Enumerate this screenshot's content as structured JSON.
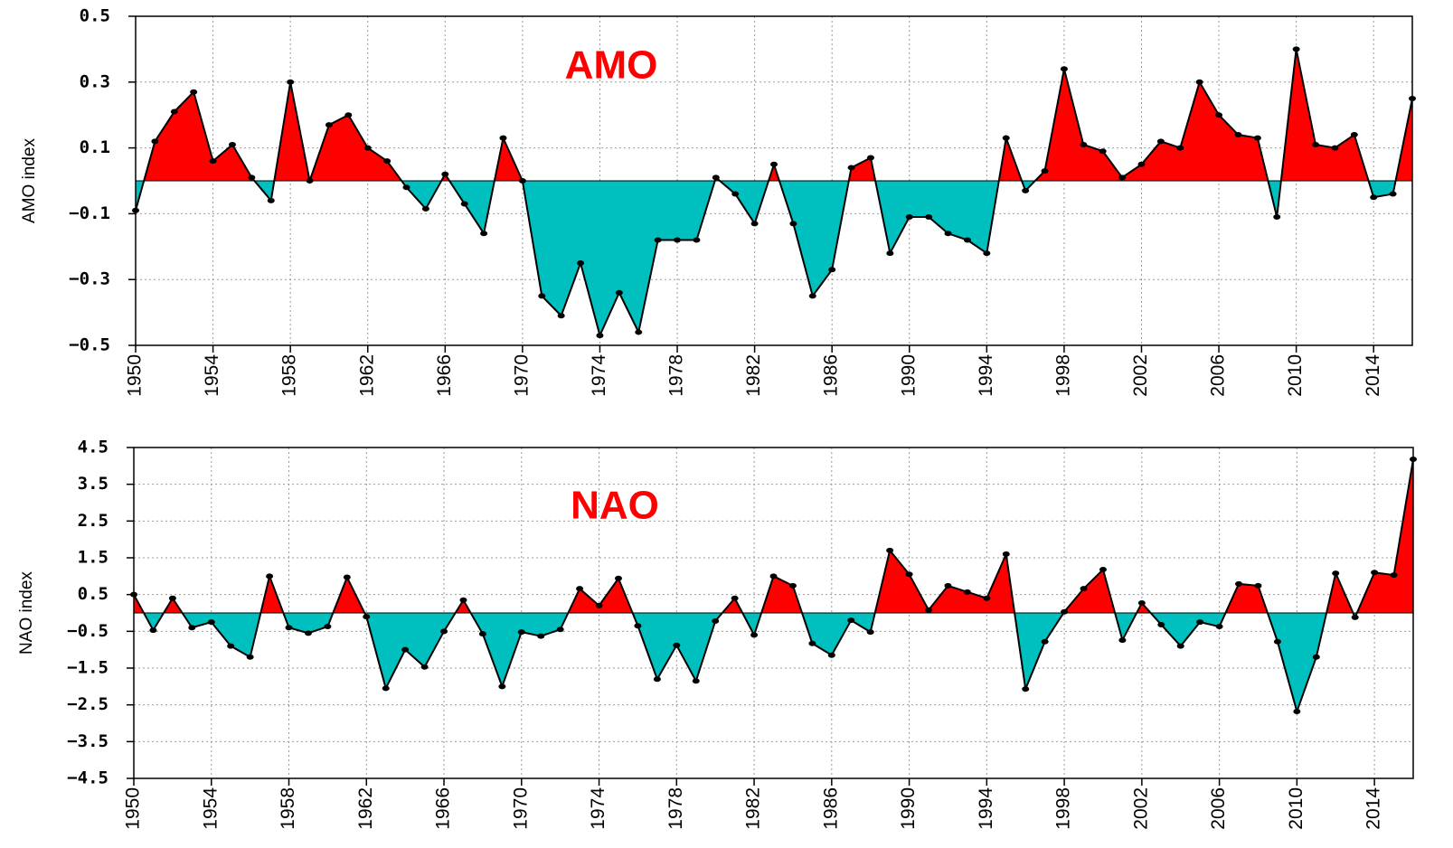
{
  "chart_data": [
    {
      "type": "area",
      "title": "AMO",
      "y_label": "AMO index",
      "x": [
        1950,
        1951,
        1952,
        1953,
        1954,
        1955,
        1956,
        1957,
        1958,
        1959,
        1960,
        1961,
        1962,
        1963,
        1964,
        1965,
        1966,
        1967,
        1968,
        1969,
        1970,
        1971,
        1972,
        1973,
        1974,
        1975,
        1976,
        1977,
        1978,
        1979,
        1980,
        1981,
        1982,
        1983,
        1984,
        1985,
        1986,
        1987,
        1988,
        1989,
        1990,
        1991,
        1992,
        1993,
        1994,
        1995,
        1996,
        1997,
        1998,
        1999,
        2000,
        2001,
        2002,
        2003,
        2004,
        2005,
        2006,
        2007,
        2008,
        2009,
        2010,
        2011,
        2012,
        2013,
        2014,
        2015,
        2016
      ],
      "values": [
        -0.09,
        0.12,
        0.21,
        0.27,
        0.06,
        0.11,
        0.01,
        -0.06,
        0.3,
        0.0,
        0.17,
        0.2,
        0.1,
        0.06,
        -0.02,
        -0.085,
        0.02,
        -0.07,
        -0.16,
        0.13,
        0.0,
        -0.35,
        -0.41,
        -0.25,
        -0.47,
        -0.34,
        -0.46,
        -0.18,
        -0.18,
        -0.18,
        0.01,
        -0.04,
        -0.13,
        0.05,
        -0.13,
        -0.35,
        -0.27,
        0.04,
        0.07,
        -0.22,
        -0.11,
        -0.11,
        -0.16,
        -0.18,
        -0.22,
        0.13,
        -0.03,
        0.03,
        0.34,
        0.11,
        0.09,
        0.01,
        0.05,
        0.12,
        0.1,
        0.3,
        0.2,
        0.14,
        0.13,
        -0.11,
        0.4,
        0.11,
        0.1,
        0.14,
        -0.05,
        -0.04,
        0.25
      ],
      "xlim": [
        1950,
        2016
      ],
      "xticks": [
        1950,
        1954,
        1958,
        1962,
        1966,
        1970,
        1974,
        1978,
        1982,
        1986,
        1990,
        1994,
        1998,
        2002,
        2006,
        2010,
        2014
      ],
      "ylim": [
        -0.5,
        0.5
      ],
      "yticks": [
        {
          "value": -0.5,
          "label": "−0.5"
        },
        {
          "value": -0.3,
          "label": "−0.3"
        },
        {
          "value": -0.1,
          "label": "−0.1"
        },
        0.1,
        0.3,
        0.5
      ],
      "positive_color": "#ff0000",
      "negative_color": "#00bfbf",
      "line_color": "#000000",
      "grid": true
    },
    {
      "type": "area",
      "title": "NAO",
      "y_label": "NAO index",
      "x": [
        1950,
        1951,
        1952,
        1953,
        1954,
        1955,
        1956,
        1957,
        1958,
        1959,
        1960,
        1961,
        1962,
        1963,
        1964,
        1965,
        1966,
        1967,
        1968,
        1969,
        1970,
        1971,
        1972,
        1973,
        1974,
        1975,
        1976,
        1977,
        1978,
        1979,
        1980,
        1981,
        1982,
        1983,
        1984,
        1985,
        1986,
        1987,
        1988,
        1989,
        1990,
        1991,
        1992,
        1993,
        1994,
        1995,
        1996,
        1997,
        1998,
        1999,
        2000,
        2001,
        2002,
        2003,
        2004,
        2005,
        2006,
        2007,
        2008,
        2009,
        2010,
        2011,
        2012,
        2013,
        2014,
        2015,
        2016
      ],
      "values": [
        0.5,
        -0.47,
        0.4,
        -0.4,
        -0.25,
        -0.9,
        -1.2,
        1.0,
        -0.4,
        -0.55,
        -0.37,
        0.97,
        -0.1,
        -2.05,
        -1.0,
        -1.47,
        -0.5,
        0.35,
        -0.57,
        -2.0,
        -0.52,
        -0.63,
        -0.45,
        0.66,
        0.2,
        0.94,
        -0.35,
        -1.8,
        -0.88,
        -1.85,
        -0.22,
        0.4,
        -0.6,
        1.0,
        0.74,
        -0.83,
        -1.15,
        -0.2,
        -0.52,
        1.7,
        1.05,
        0.08,
        0.74,
        0.57,
        0.4,
        1.6,
        -2.07,
        -0.78,
        0.03,
        0.66,
        1.18,
        -0.74,
        0.27,
        -0.32,
        -0.9,
        -0.25,
        -0.37,
        0.79,
        0.74,
        -0.78,
        -2.68,
        -1.2,
        1.08,
        -0.12,
        1.1,
        1.03,
        4.18
      ],
      "xlim": [
        1950,
        2016
      ],
      "xticks": [
        1950,
        1954,
        1958,
        1962,
        1966,
        1970,
        1974,
        1978,
        1982,
        1986,
        1990,
        1994,
        1998,
        2002,
        2006,
        2010,
        2014
      ],
      "ylim": [
        -4.5,
        4.5
      ],
      "yticks": [
        {
          "value": -4.5,
          "label": "−4.5"
        },
        {
          "value": -3.5,
          "label": "−3.5"
        },
        {
          "value": -2.5,
          "label": "−2.5"
        },
        {
          "value": -1.5,
          "label": "−1.5"
        },
        {
          "value": -0.5,
          "label": "−0.5"
        },
        0.5,
        1.5,
        2.5,
        3.5,
        4.5
      ],
      "positive_color": "#ff0000",
      "negative_color": "#00bfbf",
      "line_color": "#000000",
      "grid": true
    }
  ]
}
